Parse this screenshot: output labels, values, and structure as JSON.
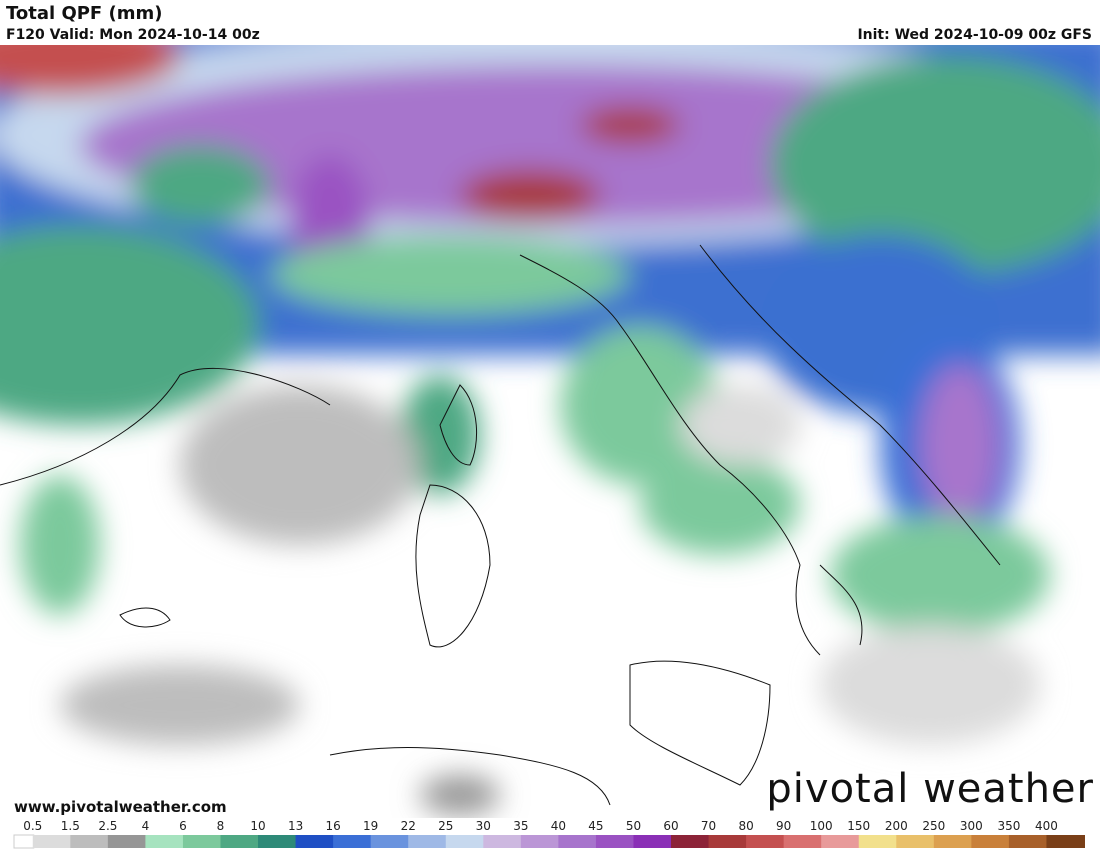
{
  "header": {
    "title": "Total QPF (mm)",
    "valid": "F120 Valid: Mon 2024-10-14 00z",
    "init": "Init: Wed 2024-10-09 00z GFS"
  },
  "footer": {
    "website": "www.pivotalweather.com",
    "logo": "pivotal weather"
  },
  "legend": {
    "labels": [
      0.5,
      1.5,
      2.5,
      4,
      6,
      8,
      10,
      13,
      16,
      19,
      22,
      25,
      30,
      35,
      40,
      45,
      50,
      60,
      70,
      80,
      90,
      100,
      150,
      200,
      250,
      300,
      350,
      400
    ],
    "colors": [
      "#dcdcdc",
      "#bdbdbd",
      "#969696",
      "#a6e3bf",
      "#7cc99c",
      "#4ea883",
      "#2e8a78",
      "#1f4fc4",
      "#3b6fd6",
      "#6a93de",
      "#9fb9e6",
      "#c6d8ee",
      "#cdb8e0",
      "#bb96d6",
      "#a774cc",
      "#9a52c2",
      "#8a2fb6",
      "#8c2338",
      "#a83a3a",
      "#c45050",
      "#d97070",
      "#e89a9a",
      "#f2e08c",
      "#e9c06a",
      "#dca050",
      "#c9803a",
      "#a8602a",
      "#7a3f18"
    ]
  }
}
